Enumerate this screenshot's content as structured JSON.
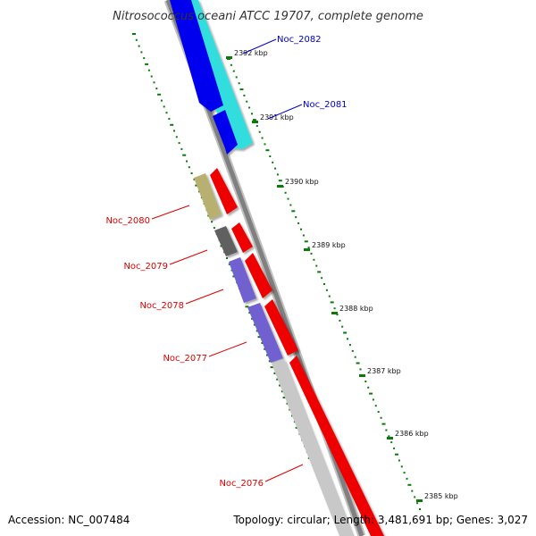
{
  "title": "Nitrosococcus oceani ATCC 19707, complete genome",
  "footer": {
    "accession": "Accession: NC_007484",
    "summary": "Topology: circular; Length: 3,481,691 bp; Genes: 3,027"
  },
  "ruler": [
    {
      "label": "2392 kbp"
    },
    {
      "label": "2391 kbp"
    },
    {
      "label": "2390 kbp"
    },
    {
      "label": "2389 kbp"
    },
    {
      "label": "2388 kbp"
    },
    {
      "label": "2387 kbp"
    },
    {
      "label": "2386 kbp"
    },
    {
      "label": "2385 kbp"
    }
  ],
  "gene_labels": [
    {
      "label": "Noc_2082",
      "color": "#0000cc"
    },
    {
      "label": "Noc_2081",
      "color": "#0000cc"
    },
    {
      "label": "Noc_2080",
      "color": "#dd0000"
    },
    {
      "label": "Noc_2079",
      "color": "#dd0000"
    },
    {
      "label": "Noc_2078",
      "color": "#dd0000"
    },
    {
      "label": "Noc_2077",
      "color": "#dd0000"
    },
    {
      "label": "Noc_2076",
      "color": "#dd0000"
    }
  ],
  "colors": {
    "backbone": "#808080",
    "tick": "#0a7a0a",
    "forward_cds": "#0000ee",
    "forward_cds_alt": "#33dddd",
    "reverse_cds": "#ee0000",
    "reverse_feature_gold": "#b8b070",
    "reverse_feature_gray": "#606060",
    "reverse_feature_purple": "#7060d0",
    "reverse_feature_light": "#c8c8c8"
  }
}
